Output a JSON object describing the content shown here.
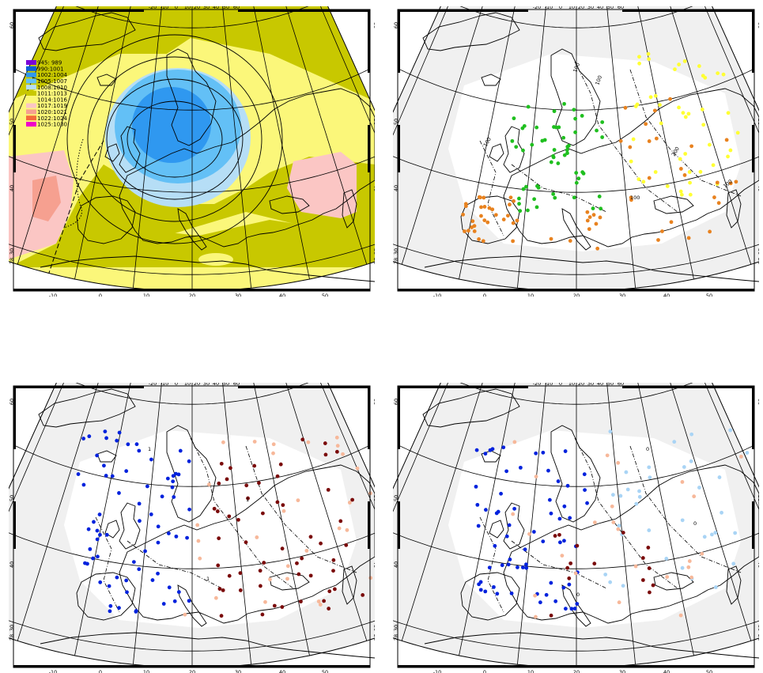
{
  "colors": {
    "land_outline": "#000000",
    "frame": "#000000",
    "fill_light": "#f0f0f0",
    "green": "#1fbf1f",
    "yellow": "#ffff33",
    "orange": "#e8821f",
    "blue": "#0022dd",
    "darkred": "#7a0a0a",
    "peach": "#f7b89a",
    "lightblue": "#a9d4f5"
  },
  "panels": [
    {
      "id": "pressure-map"
    },
    {
      "id": "station-map-top-right"
    },
    {
      "id": "station-map-bottom-left"
    },
    {
      "id": "station-map-bottom-right"
    }
  ],
  "axes": {
    "bottom_ticks": [
      "-10",
      "0",
      "10",
      "20",
      "30",
      "40",
      "50"
    ],
    "top_ticks": [
      "-20",
      "-10",
      "0",
      "10",
      "20",
      "30",
      "40",
      "50",
      "60"
    ],
    "left_ticks": [
      "60",
      "50",
      "40",
      "30",
      "28"
    ],
    "right_ticks": [
      "60",
      "50",
      "40",
      "30",
      "28"
    ]
  },
  "legend": {
    "items": [
      {
        "label": "945: 989",
        "color": "#7a00d8"
      },
      {
        "label": "990:1001",
        "color": "#0b60d8"
      },
      {
        "label": "1002:1004",
        "color": "#2f98f0"
      },
      {
        "label": "1005:1007",
        "color": "#63c0f6"
      },
      {
        "label": "1008:1010",
        "color": "#b6def6"
      },
      {
        "label": "1011:1013",
        "color": "#c8c800"
      },
      {
        "label": "1014:1016",
        "color": "#fbf77a"
      },
      {
        "label": "1017:1019",
        "color": "#fbc6c4"
      },
      {
        "label": "1020:1021",
        "color": "#f6a090"
      },
      {
        "label": "1022:1024",
        "color": "#f46a3a"
      },
      {
        "label": "1025:1030",
        "color": "#f000c8"
      }
    ]
  },
  "contour_labels": {
    "tr": [
      "100",
      "200",
      "100",
      "100",
      "100",
      "100"
    ],
    "bl": [
      "1",
      "1",
      "1"
    ],
    "br": [
      "0",
      "0",
      "0"
    ]
  }
}
